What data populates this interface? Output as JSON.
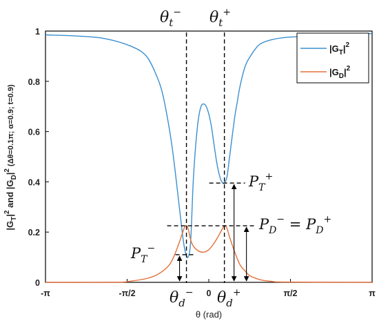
{
  "chart_data": {
    "type": "line",
    "xlabel": "θ (rad)",
    "ylabel": "|G_T|² and |G_D|² (Δθ=0.1π; α=0.9; t=0.9)",
    "xlim": [
      -3.1416,
      3.1416
    ],
    "ylim": [
      0,
      1
    ],
    "x_ticks": [
      {
        "value": -3.1416,
        "label": "-π"
      },
      {
        "value": -1.5708,
        "label": "-π/2"
      },
      {
        "value": 0,
        "label": "0"
      },
      {
        "value": 1.5708,
        "label": "π/2"
      },
      {
        "value": 3.1416,
        "label": "π"
      }
    ],
    "y_ticks": [
      {
        "value": 0,
        "label": "0"
      },
      {
        "value": 0.2,
        "label": "0.2"
      },
      {
        "value": 0.4,
        "label": "0.4"
      },
      {
        "value": 0.6,
        "label": "0.6"
      },
      {
        "value": 0.8,
        "label": "0.8"
      },
      {
        "value": 1,
        "label": "1"
      }
    ],
    "legend_position": "top-right",
    "series": [
      {
        "name": "|GT|²",
        "color": "#3a8fd0",
        "x": [
          -3.14,
          -2.5,
          -2.0,
          -1.5,
          -1.2,
          -1.0,
          -0.9,
          -0.8,
          -0.7,
          -0.6,
          -0.5,
          -0.45,
          -0.4,
          -0.35,
          -0.3,
          -0.25,
          -0.2,
          -0.15,
          -0.1,
          -0.05,
          0,
          0.05,
          0.1,
          0.15,
          0.2,
          0.25,
          0.3,
          0.35,
          0.4,
          0.45,
          0.5,
          0.55,
          0.6,
          0.7,
          0.8,
          0.9,
          1.0,
          1.2,
          1.5,
          2.0,
          2.5,
          3.14
        ],
        "y": [
          0.985,
          0.98,
          0.97,
          0.94,
          0.9,
          0.82,
          0.76,
          0.66,
          0.53,
          0.36,
          0.18,
          0.12,
          0.1,
          0.16,
          0.4,
          0.55,
          0.65,
          0.7,
          0.71,
          0.7,
          0.67,
          0.62,
          0.55,
          0.48,
          0.43,
          0.4,
          0.395,
          0.42,
          0.5,
          0.58,
          0.66,
          0.72,
          0.78,
          0.86,
          0.9,
          0.93,
          0.95,
          0.965,
          0.975,
          0.98,
          0.985,
          0.99
        ]
      },
      {
        "name": "|GD|²",
        "color": "#e2703a",
        "x": [
          -3.14,
          -1.8,
          -1.5,
          -1.2,
          -1.0,
          -0.8,
          -0.7,
          -0.6,
          -0.5,
          -0.45,
          -0.4,
          -0.35,
          -0.3,
          -0.2,
          -0.1,
          0,
          0.1,
          0.2,
          0.3,
          0.35,
          0.4,
          0.5,
          0.6,
          0.7,
          0.8,
          1.0,
          1.2,
          1.5,
          3.14
        ],
        "y": [
          0,
          0,
          0.005,
          0.015,
          0.03,
          0.06,
          0.09,
          0.14,
          0.2,
          0.225,
          0.215,
          0.17,
          0.145,
          0.125,
          0.12,
          0.13,
          0.155,
          0.19,
          0.225,
          0.215,
          0.18,
          0.12,
          0.07,
          0.045,
          0.025,
          0.01,
          0.004,
          0.001,
          0
        ]
      }
    ],
    "annotations": [
      {
        "kind": "vline",
        "x": -0.43,
        "label": "θ_t^-"
      },
      {
        "kind": "vline",
        "x": 0.3,
        "label": "θ_t^+"
      },
      {
        "kind": "vline",
        "x": -0.43,
        "label": "θ_d^-"
      },
      {
        "kind": "vline",
        "x": 0.3,
        "label": "θ_d^+"
      },
      {
        "kind": "hline",
        "y": 0.395,
        "label": "P_T^+"
      },
      {
        "kind": "hline",
        "y": 0.225,
        "label": "P_D^- = P_D^+"
      },
      {
        "kind": "hline",
        "y": 0.11,
        "label": "P_T^-"
      }
    ]
  },
  "labels": {
    "theta": "θ",
    "t": "t",
    "d": "d",
    "minus": "−",
    "plus": "+",
    "P": "P",
    "T": "T",
    "D": "D",
    "equals": " = ",
    "legend_T_base": "|G",
    "legend_T_sub": "T",
    "legend_T_end": "|",
    "legend_sup": "2",
    "legend_D_base": "|G",
    "legend_D_sub": "D",
    "legend_D_end": "|",
    "xlabel": "θ (rad)",
    "ylabel_a": "|G",
    "ylabel_b": "T",
    "ylabel_c": "|",
    "ylabel_d": "2",
    "ylabel_e": " and |G",
    "ylabel_f": "D",
    "ylabel_g": "|",
    "ylabel_h": "2",
    "ylabel_i": " (Δθ=0.1π; α=0.9; t=0.9)"
  }
}
